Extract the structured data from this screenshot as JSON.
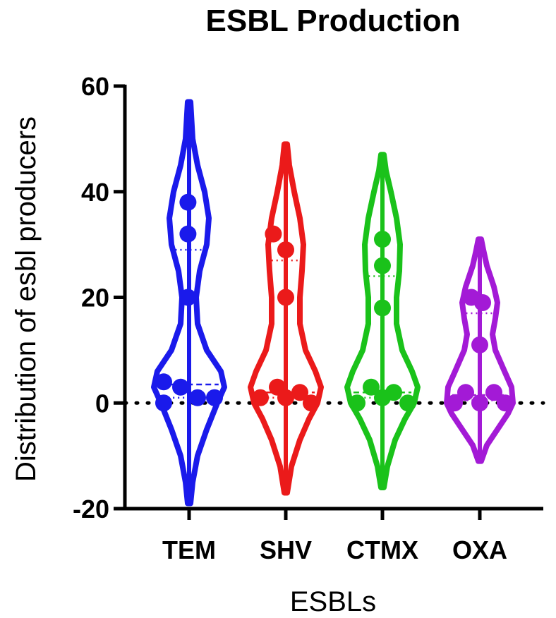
{
  "chart_data": {
    "type": "violin",
    "title": "ESBL Production",
    "xlabel": "ESBLs",
    "ylabel": "Distribution of esbl producers",
    "ylim": [
      -20,
      60
    ],
    "yticks": [
      "-20",
      "0",
      "20",
      "40",
      "60"
    ],
    "reference_line_y": 0,
    "grid": false,
    "categories": [
      "TEM",
      "SHV",
      "CTMX",
      "OXA"
    ],
    "colors": [
      "#1a1aeb",
      "#eb1a1a",
      "#1ac21a",
      "#a31ad6"
    ],
    "series": [
      {
        "category": "TEM",
        "points": [
          [
            -0.45,
            4
          ],
          [
            -0.45,
            0
          ],
          [
            -0.15,
            3
          ],
          [
            0.15,
            1
          ],
          [
            0.45,
            1
          ],
          [
            -0.02,
            38
          ],
          [
            -0.02,
            32
          ],
          [
            -0.02,
            20
          ]
        ],
        "median": 3.5,
        "q1": 1,
        "q3": 29,
        "violin_range": [
          -19,
          57
        ],
        "profile": [
          [
            -19,
            0.02
          ],
          [
            -15,
            0.05
          ],
          [
            -10,
            0.12
          ],
          [
            -5,
            0.25
          ],
          [
            0,
            0.4
          ],
          [
            3,
            0.5
          ],
          [
            6,
            0.45
          ],
          [
            10,
            0.25
          ],
          [
            15,
            0.12
          ],
          [
            20,
            0.1
          ],
          [
            25,
            0.15
          ],
          [
            30,
            0.25
          ],
          [
            35,
            0.28
          ],
          [
            40,
            0.22
          ],
          [
            45,
            0.12
          ],
          [
            50,
            0.05
          ],
          [
            57,
            0.02
          ]
        ]
      },
      {
        "category": "SHV",
        "points": [
          [
            -0.45,
            1
          ],
          [
            -0.15,
            3
          ],
          [
            0.0,
            1
          ],
          [
            0.25,
            2
          ],
          [
            0.45,
            0
          ],
          [
            -0.22,
            32
          ],
          [
            0.0,
            29
          ],
          [
            0.0,
            20
          ]
        ],
        "median": 2,
        "q1": 1,
        "q3": 27,
        "violin_range": [
          -17,
          49
        ],
        "profile": [
          [
            -17,
            0.02
          ],
          [
            -12,
            0.08
          ],
          [
            -7,
            0.2
          ],
          [
            -3,
            0.33
          ],
          [
            0,
            0.45
          ],
          [
            3,
            0.5
          ],
          [
            6,
            0.42
          ],
          [
            10,
            0.28
          ],
          [
            15,
            0.2
          ],
          [
            20,
            0.2
          ],
          [
            25,
            0.23
          ],
          [
            30,
            0.25
          ],
          [
            35,
            0.2
          ],
          [
            40,
            0.12
          ],
          [
            45,
            0.05
          ],
          [
            49,
            0.02
          ]
        ]
      },
      {
        "category": "CTMX",
        "points": [
          [
            -0.45,
            0
          ],
          [
            -0.2,
            3
          ],
          [
            0.0,
            1
          ],
          [
            0.2,
            2
          ],
          [
            0.45,
            0
          ],
          [
            0.0,
            31
          ],
          [
            0.0,
            26
          ],
          [
            0.0,
            18
          ]
        ],
        "median": 2,
        "q1": 1,
        "q3": 24,
        "violin_range": [
          -16,
          47
        ],
        "profile": [
          [
            -16,
            0.02
          ],
          [
            -12,
            0.07
          ],
          [
            -7,
            0.18
          ],
          [
            -3,
            0.32
          ],
          [
            0,
            0.45
          ],
          [
            3,
            0.5
          ],
          [
            6,
            0.42
          ],
          [
            10,
            0.28
          ],
          [
            15,
            0.2
          ],
          [
            20,
            0.2
          ],
          [
            25,
            0.24
          ],
          [
            30,
            0.25
          ],
          [
            35,
            0.2
          ],
          [
            40,
            0.12
          ],
          [
            44,
            0.05
          ],
          [
            47,
            0.02
          ]
        ]
      },
      {
        "category": "OXA",
        "points": [
          [
            -0.45,
            0
          ],
          [
            -0.25,
            2
          ],
          [
            0.0,
            0
          ],
          [
            0.25,
            2
          ],
          [
            0.45,
            0
          ],
          [
            -0.15,
            20
          ],
          [
            0.05,
            19
          ],
          [
            0.0,
            11
          ]
        ],
        "median": 1.5,
        "q1": 0.5,
        "q3": 17,
        "violin_range": [
          -11,
          31
        ],
        "profile": [
          [
            -11,
            0.02
          ],
          [
            -8,
            0.1
          ],
          [
            -5,
            0.25
          ],
          [
            -2,
            0.4
          ],
          [
            0,
            0.47
          ],
          [
            3,
            0.45
          ],
          [
            6,
            0.35
          ],
          [
            10,
            0.22
          ],
          [
            13,
            0.18
          ],
          [
            16,
            0.22
          ],
          [
            19,
            0.25
          ],
          [
            22,
            0.2
          ],
          [
            26,
            0.1
          ],
          [
            29,
            0.05
          ],
          [
            31,
            0.02
          ]
        ]
      }
    ]
  }
}
